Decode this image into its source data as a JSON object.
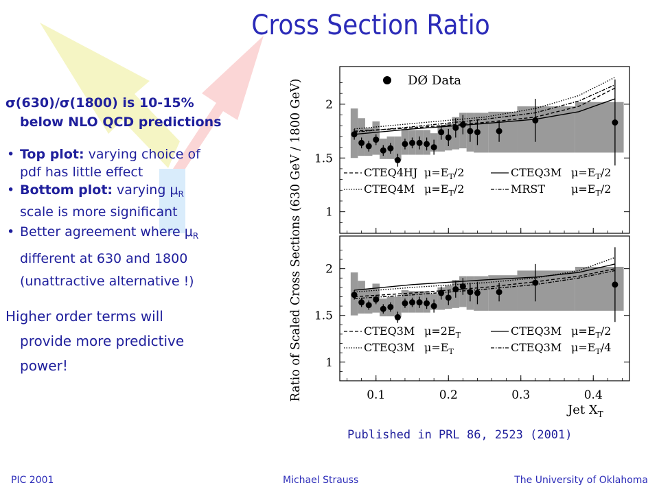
{
  "slide": {
    "title": "Cross Section Ratio",
    "point1_line1": "σ(630)/σ(1800) is 10-15%",
    "point1_line2": "below NLO QCD predictions",
    "b1_bold": "Top plot:",
    "b1_rest": " varying choice of",
    "b1_line2": "pdf has little effect",
    "b2_bold": "Bottom plot:",
    "b2_pre": " varying μ",
    "b2_sub": "R",
    "b2_line2": "scale  is more significant",
    "b3_pre": "Better agreement where μ",
    "b3_sub": "R",
    "b3_line2": "different at 630 and 1800",
    "b3_line3": "(unattractive alternative !)",
    "higher_line1": "Higher order terms will",
    "higher_line2": "provide more predictive",
    "higher_line3": "power!",
    "published": "Published in PRL 86, 2523 (2001)"
  },
  "footer": {
    "left": "PIC 2001",
    "center": "Michael Strauss",
    "right": "The University of Oklahoma"
  },
  "colors": {
    "text_blue": "#1f1f9c",
    "title_blue": "#2b2bb8",
    "systematic_band": "#9a9a9a",
    "data_marker": "#000000"
  },
  "chart_data": [
    {
      "type": "scatter",
      "panel": "top",
      "ylabel": "Ratio of Scaled Cross Sections (630 GeV / 1800 GeV)",
      "y_ticks": [
        "1",
        "1.5",
        "2"
      ],
      "ylim": [
        0.8,
        2.35
      ],
      "xlim": [
        0.05,
        0.45
      ],
      "legend_top": "DØ Data",
      "data": {
        "x": [
          0.07,
          0.08,
          0.09,
          0.1,
          0.11,
          0.12,
          0.13,
          0.14,
          0.15,
          0.16,
          0.17,
          0.18,
          0.19,
          0.2,
          0.21,
          0.22,
          0.23,
          0.24,
          0.27,
          0.32,
          0.43
        ],
        "y": [
          1.72,
          1.64,
          1.61,
          1.67,
          1.57,
          1.59,
          1.48,
          1.63,
          1.64,
          1.64,
          1.63,
          1.6,
          1.74,
          1.69,
          1.78,
          1.81,
          1.75,
          1.74,
          1.75,
          1.85,
          1.83
        ],
        "err": [
          0.05,
          0.05,
          0.05,
          0.05,
          0.05,
          0.05,
          0.06,
          0.05,
          0.05,
          0.06,
          0.06,
          0.07,
          0.07,
          0.08,
          0.09,
          0.09,
          0.1,
          0.12,
          0.1,
          0.2,
          0.4
        ]
      },
      "band": {
        "x": [
          0.07,
          0.08,
          0.09,
          0.1,
          0.11,
          0.12,
          0.13,
          0.14,
          0.15,
          0.16,
          0.17,
          0.18,
          0.19,
          0.2,
          0.21,
          0.22,
          0.23,
          0.24,
          0.27,
          0.32,
          0.43
        ],
        "low": [
          1.5,
          1.52,
          1.52,
          1.53,
          1.49,
          1.49,
          1.48,
          1.53,
          1.53,
          1.53,
          1.53,
          1.56,
          1.56,
          1.57,
          1.58,
          1.59,
          1.56,
          1.55,
          1.55,
          1.55,
          1.55
        ],
        "high": [
          1.96,
          1.87,
          1.78,
          1.84,
          1.68,
          1.7,
          1.7,
          1.77,
          1.76,
          1.76,
          1.76,
          1.73,
          1.8,
          1.82,
          1.88,
          1.92,
          1.92,
          1.92,
          1.93,
          1.98,
          2.02
        ]
      },
      "series": [
        {
          "name": "CTEQ4HJ",
          "mu": "μ=E_T/2",
          "style": "dashed",
          "x": [
            0.07,
            0.15,
            0.25,
            0.32,
            0.38,
            0.43
          ],
          "y": [
            1.75,
            1.78,
            1.83,
            1.88,
            1.98,
            2.15
          ]
        },
        {
          "name": "CTEQ3M",
          "mu": "μ=E_T/2",
          "style": "solid",
          "x": [
            0.07,
            0.15,
            0.25,
            0.32,
            0.38,
            0.43
          ],
          "y": [
            1.72,
            1.77,
            1.82,
            1.86,
            1.93,
            2.05
          ]
        },
        {
          "name": "CTEQ4M",
          "mu": "μ=E_T/2",
          "style": "dotted",
          "x": [
            0.07,
            0.15,
            0.25,
            0.32,
            0.38,
            0.43
          ],
          "y": [
            1.77,
            1.82,
            1.88,
            1.96,
            2.08,
            2.25
          ]
        },
        {
          "name": "MRST",
          "mu": "μ=E_T/2",
          "style": "dashdot",
          "x": [
            0.07,
            0.15,
            0.25,
            0.32,
            0.38,
            0.43
          ],
          "y": [
            1.74,
            1.79,
            1.86,
            1.92,
            2.03,
            2.18
          ]
        }
      ],
      "legend": [
        {
          "label": "CTEQ4HJ",
          "mu": "μ=E",
          "sub": "T",
          "tail": "/2",
          "style": "dashed"
        },
        {
          "label": "CTEQ3M",
          "mu": "μ=E",
          "sub": "T",
          "tail": "/2",
          "style": "solid"
        },
        {
          "label": "CTEQ4M",
          "mu": "μ=E",
          "sub": "T",
          "tail": "/2",
          "style": "dotted"
        },
        {
          "label": "MRST",
          "mu": "μ=E",
          "sub": "T",
          "tail": "/2",
          "style": "dashdot"
        }
      ]
    },
    {
      "type": "scatter",
      "panel": "bottom",
      "xlabel": "Jet X",
      "xlabel_sub": "T",
      "x_ticks": [
        "0.1",
        "0.2",
        "0.3",
        "0.4"
      ],
      "y_ticks": [
        "1",
        "1.5",
        "2"
      ],
      "ylim": [
        0.8,
        2.35
      ],
      "xlim": [
        0.05,
        0.45
      ],
      "data": {
        "x": [
          0.07,
          0.08,
          0.09,
          0.1,
          0.11,
          0.12,
          0.13,
          0.14,
          0.15,
          0.16,
          0.17,
          0.18,
          0.19,
          0.2,
          0.21,
          0.22,
          0.23,
          0.24,
          0.27,
          0.32,
          0.43
        ],
        "y": [
          1.72,
          1.64,
          1.61,
          1.67,
          1.57,
          1.59,
          1.48,
          1.63,
          1.64,
          1.64,
          1.63,
          1.6,
          1.74,
          1.69,
          1.78,
          1.81,
          1.75,
          1.74,
          1.75,
          1.85,
          1.83
        ],
        "err": [
          0.05,
          0.05,
          0.05,
          0.05,
          0.05,
          0.05,
          0.06,
          0.05,
          0.05,
          0.06,
          0.06,
          0.07,
          0.07,
          0.08,
          0.09,
          0.09,
          0.1,
          0.12,
          0.1,
          0.2,
          0.4
        ]
      },
      "band": {
        "x": [
          0.07,
          0.08,
          0.09,
          0.1,
          0.11,
          0.12,
          0.13,
          0.14,
          0.15,
          0.16,
          0.17,
          0.18,
          0.19,
          0.2,
          0.21,
          0.22,
          0.23,
          0.24,
          0.27,
          0.32,
          0.43
        ],
        "low": [
          1.5,
          1.52,
          1.52,
          1.53,
          1.49,
          1.49,
          1.48,
          1.53,
          1.53,
          1.53,
          1.53,
          1.56,
          1.56,
          1.57,
          1.58,
          1.59,
          1.56,
          1.55,
          1.55,
          1.55,
          1.55
        ],
        "high": [
          1.96,
          1.87,
          1.78,
          1.84,
          1.68,
          1.7,
          1.7,
          1.77,
          1.76,
          1.76,
          1.76,
          1.73,
          1.8,
          1.82,
          1.88,
          1.92,
          1.92,
          1.92,
          1.93,
          1.98,
          2.02
        ]
      },
      "series": [
        {
          "name": "CTEQ3M",
          "mu": "μ=2E_T",
          "style": "dashed",
          "x": [
            0.07,
            0.15,
            0.25,
            0.32,
            0.38,
            0.43
          ],
          "y": [
            1.7,
            1.74,
            1.8,
            1.86,
            1.92,
            2.0
          ]
        },
        {
          "name": "CTEQ3M",
          "mu": "μ=E_T/2",
          "style": "solid",
          "x": [
            0.07,
            0.15,
            0.25,
            0.32,
            0.38,
            0.43
          ],
          "y": [
            1.77,
            1.83,
            1.88,
            1.91,
            1.96,
            2.05
          ]
        },
        {
          "name": "CTEQ3M",
          "mu": "μ=E_T",
          "style": "dotted",
          "x": [
            0.07,
            0.15,
            0.25,
            0.32,
            0.38,
            0.43
          ],
          "y": [
            1.75,
            1.8,
            1.85,
            1.9,
            1.98,
            2.12
          ]
        },
        {
          "name": "CTEQ3M",
          "mu": "μ=E_T/4",
          "style": "dashdot",
          "x": [
            0.07,
            0.15,
            0.25,
            0.32,
            0.38,
            0.43
          ],
          "y": [
            1.68,
            1.72,
            1.78,
            1.83,
            1.9,
            1.98
          ]
        }
      ],
      "legend": [
        {
          "label": "CTEQ3M",
          "mu": "μ=2E",
          "sub": "T",
          "tail": "",
          "style": "dashed"
        },
        {
          "label": "CTEQ3M",
          "mu": "μ=E",
          "sub": "T",
          "tail": "/2",
          "style": "solid"
        },
        {
          "label": "CTEQ3M",
          "mu": "μ=E",
          "sub": "T",
          "tail": "",
          "style": "dotted"
        },
        {
          "label": "CTEQ3M",
          "mu": "μ=E",
          "sub": "T",
          "tail": "/4",
          "style": "dashdot"
        }
      ]
    }
  ]
}
